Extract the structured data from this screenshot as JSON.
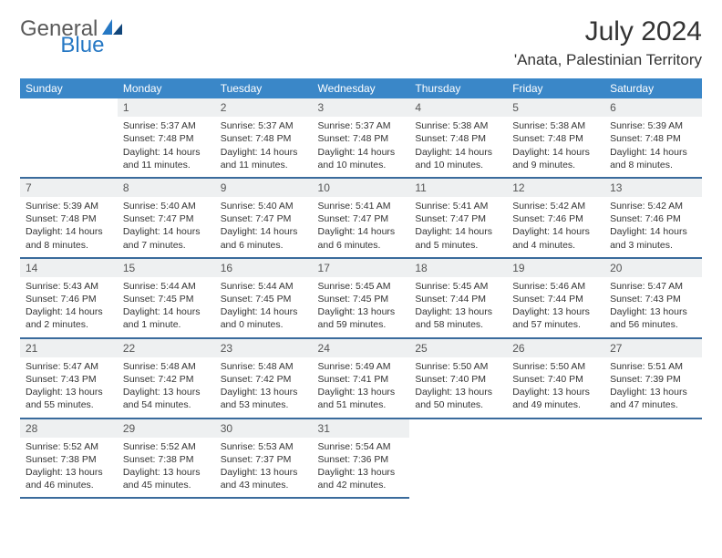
{
  "logo": {
    "text1": "General",
    "text2": "Blue"
  },
  "title": "July 2024",
  "location": "'Anata, Palestinian Territory",
  "colors": {
    "header_bg": "#3a87c8",
    "header_fg": "#ffffff",
    "rule": "#3a6b9c",
    "daynum_bg": "#eef0f1",
    "logo_gray": "#5a5a5a",
    "logo_blue": "#2678c4"
  },
  "weekdays": [
    "Sunday",
    "Monday",
    "Tuesday",
    "Wednesday",
    "Thursday",
    "Friday",
    "Saturday"
  ],
  "weeks": [
    [
      null,
      {
        "n": "1",
        "sr": "5:37 AM",
        "ss": "7:48 PM",
        "dl": "14 hours and 11 minutes."
      },
      {
        "n": "2",
        "sr": "5:37 AM",
        "ss": "7:48 PM",
        "dl": "14 hours and 11 minutes."
      },
      {
        "n": "3",
        "sr": "5:37 AM",
        "ss": "7:48 PM",
        "dl": "14 hours and 10 minutes."
      },
      {
        "n": "4",
        "sr": "5:38 AM",
        "ss": "7:48 PM",
        "dl": "14 hours and 10 minutes."
      },
      {
        "n": "5",
        "sr": "5:38 AM",
        "ss": "7:48 PM",
        "dl": "14 hours and 9 minutes."
      },
      {
        "n": "6",
        "sr": "5:39 AM",
        "ss": "7:48 PM",
        "dl": "14 hours and 8 minutes."
      }
    ],
    [
      {
        "n": "7",
        "sr": "5:39 AM",
        "ss": "7:48 PM",
        "dl": "14 hours and 8 minutes."
      },
      {
        "n": "8",
        "sr": "5:40 AM",
        "ss": "7:47 PM",
        "dl": "14 hours and 7 minutes."
      },
      {
        "n": "9",
        "sr": "5:40 AM",
        "ss": "7:47 PM",
        "dl": "14 hours and 6 minutes."
      },
      {
        "n": "10",
        "sr": "5:41 AM",
        "ss": "7:47 PM",
        "dl": "14 hours and 6 minutes."
      },
      {
        "n": "11",
        "sr": "5:41 AM",
        "ss": "7:47 PM",
        "dl": "14 hours and 5 minutes."
      },
      {
        "n": "12",
        "sr": "5:42 AM",
        "ss": "7:46 PM",
        "dl": "14 hours and 4 minutes."
      },
      {
        "n": "13",
        "sr": "5:42 AM",
        "ss": "7:46 PM",
        "dl": "14 hours and 3 minutes."
      }
    ],
    [
      {
        "n": "14",
        "sr": "5:43 AM",
        "ss": "7:46 PM",
        "dl": "14 hours and 2 minutes."
      },
      {
        "n": "15",
        "sr": "5:44 AM",
        "ss": "7:45 PM",
        "dl": "14 hours and 1 minute."
      },
      {
        "n": "16",
        "sr": "5:44 AM",
        "ss": "7:45 PM",
        "dl": "14 hours and 0 minutes."
      },
      {
        "n": "17",
        "sr": "5:45 AM",
        "ss": "7:45 PM",
        "dl": "13 hours and 59 minutes."
      },
      {
        "n": "18",
        "sr": "5:45 AM",
        "ss": "7:44 PM",
        "dl": "13 hours and 58 minutes."
      },
      {
        "n": "19",
        "sr": "5:46 AM",
        "ss": "7:44 PM",
        "dl": "13 hours and 57 minutes."
      },
      {
        "n": "20",
        "sr": "5:47 AM",
        "ss": "7:43 PM",
        "dl": "13 hours and 56 minutes."
      }
    ],
    [
      {
        "n": "21",
        "sr": "5:47 AM",
        "ss": "7:43 PM",
        "dl": "13 hours and 55 minutes."
      },
      {
        "n": "22",
        "sr": "5:48 AM",
        "ss": "7:42 PM",
        "dl": "13 hours and 54 minutes."
      },
      {
        "n": "23",
        "sr": "5:48 AM",
        "ss": "7:42 PM",
        "dl": "13 hours and 53 minutes."
      },
      {
        "n": "24",
        "sr": "5:49 AM",
        "ss": "7:41 PM",
        "dl": "13 hours and 51 minutes."
      },
      {
        "n": "25",
        "sr": "5:50 AM",
        "ss": "7:40 PM",
        "dl": "13 hours and 50 minutes."
      },
      {
        "n": "26",
        "sr": "5:50 AM",
        "ss": "7:40 PM",
        "dl": "13 hours and 49 minutes."
      },
      {
        "n": "27",
        "sr": "5:51 AM",
        "ss": "7:39 PM",
        "dl": "13 hours and 47 minutes."
      }
    ],
    [
      {
        "n": "28",
        "sr": "5:52 AM",
        "ss": "7:38 PM",
        "dl": "13 hours and 46 minutes."
      },
      {
        "n": "29",
        "sr": "5:52 AM",
        "ss": "7:38 PM",
        "dl": "13 hours and 45 minutes."
      },
      {
        "n": "30",
        "sr": "5:53 AM",
        "ss": "7:37 PM",
        "dl": "13 hours and 43 minutes."
      },
      {
        "n": "31",
        "sr": "5:54 AM",
        "ss": "7:36 PM",
        "dl": "13 hours and 42 minutes."
      },
      null,
      null,
      null
    ]
  ],
  "labels": {
    "sunrise": "Sunrise:",
    "sunset": "Sunset:",
    "daylight": "Daylight:"
  }
}
